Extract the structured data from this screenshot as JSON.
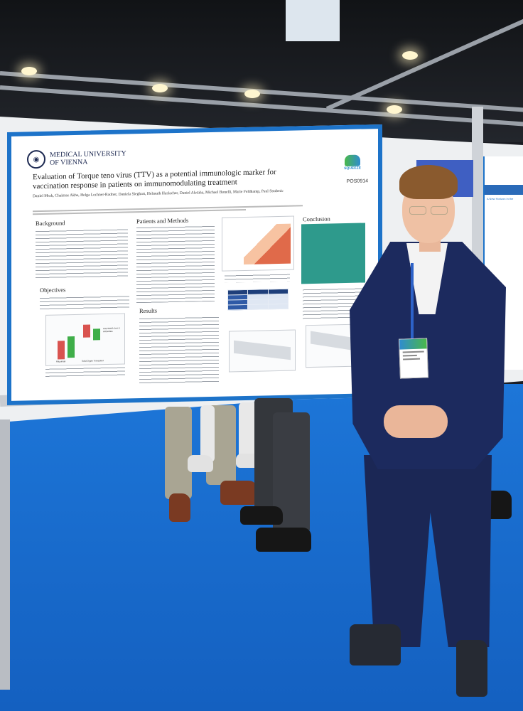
{
  "poster": {
    "institution_line1": "MEDICAL UNIVERSITY",
    "institution_line2": "OF VIENNA",
    "title": "Evaluation of Torque teno virus (TTV) as a potential immunologic marker for vaccination response in patients on immunomodulating treatment",
    "authors": "Daniel Mrak, Chaimae Akhe, Helga Lechner-Radner, Daniela Sieghart, Helmuth Haslacher, Daniel Aletaha, Michael Bonelli, Marie Feldkamp, Paul Studenic",
    "brand": "SQUEEZE",
    "code": "POS0914",
    "sections": {
      "background": "Background",
      "objectives": "Objectives",
      "methods": "Patients and Methods",
      "results": "Results",
      "conclusion": "Conclusion"
    },
    "fig1_legend": "Anti-SARS-CoV-2 antibodies",
    "fig1_x1": "Rituximab",
    "fig1_x2": "Solid Organ Transplant"
  },
  "side_poster": {
    "title": "A New Horizon in the"
  },
  "colors": {
    "poster_border": "#1d73c9",
    "floor": "#1d76d8",
    "suit": "#1c2a5e",
    "conclusion_box": "#2e9a8c"
  }
}
